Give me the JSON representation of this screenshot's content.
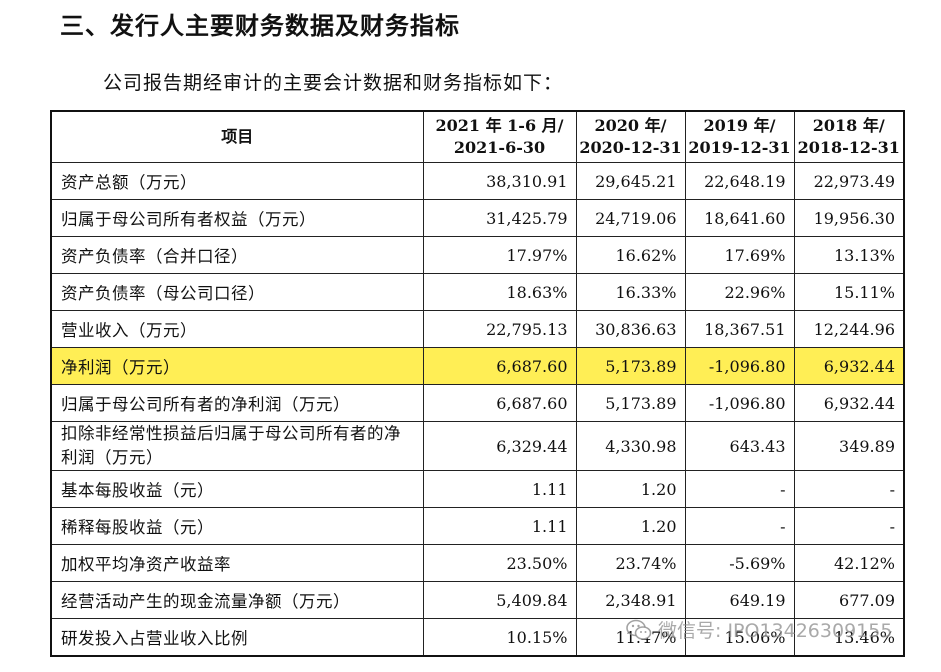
{
  "heading": "三、发行人主要财务数据及财务指标",
  "intro": "公司报告期经审计的主要会计数据和财务指标如下：",
  "table": {
    "header": {
      "item": "项目",
      "cols": [
        {
          "l1": "2021 年 1-6 月/",
          "l2": "2021-6-30"
        },
        {
          "l1": "2020 年/",
          "l2": "2020-12-31"
        },
        {
          "l1": "2019 年/",
          "l2": "2019-12-31"
        },
        {
          "l1": "2018 年/",
          "l2": "2018-12-31"
        }
      ]
    },
    "rows": [
      {
        "label": "资产总额（万元）",
        "values": [
          "38,310.91",
          "29,645.21",
          "22,648.19",
          "22,973.49"
        ]
      },
      {
        "label": "归属于母公司所有者权益（万元）",
        "values": [
          "31,425.79",
          "24,719.06",
          "18,641.60",
          "19,956.30"
        ]
      },
      {
        "label": "资产负债率（合并口径）",
        "values": [
          "17.97%",
          "16.62%",
          "17.69%",
          "13.13%"
        ]
      },
      {
        "label": "资产负债率（母公司口径）",
        "values": [
          "18.63%",
          "16.33%",
          "22.96%",
          "15.11%"
        ]
      },
      {
        "label": "营业收入（万元）",
        "values": [
          "22,795.13",
          "30,836.63",
          "18,367.51",
          "12,244.96"
        ]
      },
      {
        "label": "净利润（万元）",
        "values": [
          "6,687.60",
          "5,173.89",
          "-1,096.80",
          "6,932.44"
        ]
      },
      {
        "label": "归属于母公司所有者的净利润（万元）",
        "values": [
          "6,687.60",
          "5,173.89",
          "-1,096.80",
          "6,932.44"
        ]
      },
      {
        "label": "扣除非经常性损益后归属于母公司所有者的净利润（万元）",
        "values": [
          "6,329.44",
          "4,330.98",
          "643.43",
          "349.89"
        ]
      },
      {
        "label": "基本每股收益（元）",
        "values": [
          "1.11",
          "1.20",
          "-",
          "-"
        ]
      },
      {
        "label": "稀释每股收益（元）",
        "values": [
          "1.11",
          "1.20",
          "-",
          "-"
        ]
      },
      {
        "label": "加权平均净资产收益率",
        "values": [
          "23.50%",
          "23.74%",
          "-5.69%",
          "42.12%"
        ]
      },
      {
        "label": "经营活动产生的现金流量净额（万元）",
        "values": [
          "5,409.84",
          "2,348.91",
          "649.19",
          "677.09"
        ]
      },
      {
        "label": "研发投入占营业收入比例",
        "values": [
          "10.15%",
          "11.47%",
          "15.06%",
          "13.46%"
        ]
      }
    ]
  },
  "highlight_color": "#ffee55",
  "watermark": {
    "icon": "wechat-icon",
    "text": "微信号: IPO13426309155"
  }
}
